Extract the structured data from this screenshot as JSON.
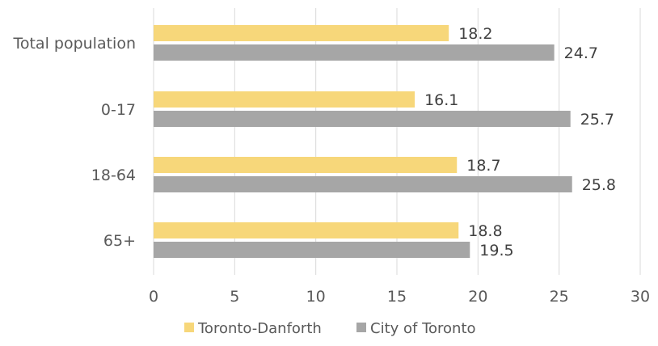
{
  "chart_data": {
    "type": "bar",
    "orientation": "horizontal",
    "categories": [
      "Total population",
      "0-17",
      "18-64",
      "65+"
    ],
    "series": [
      {
        "name": "Toronto-Danforth",
        "color": "#F7D77A",
        "values": [
          18.2,
          16.1,
          18.7,
          18.8
        ]
      },
      {
        "name": "City of Toronto",
        "color": "#A6A6A6",
        "values": [
          24.7,
          25.7,
          25.8,
          19.5
        ]
      }
    ],
    "x_ticks": [
      0,
      5,
      10,
      15,
      20,
      25,
      30
    ],
    "xlim": [
      0,
      30
    ],
    "grid": true,
    "legend_position": "bottom",
    "data_labels": true
  }
}
